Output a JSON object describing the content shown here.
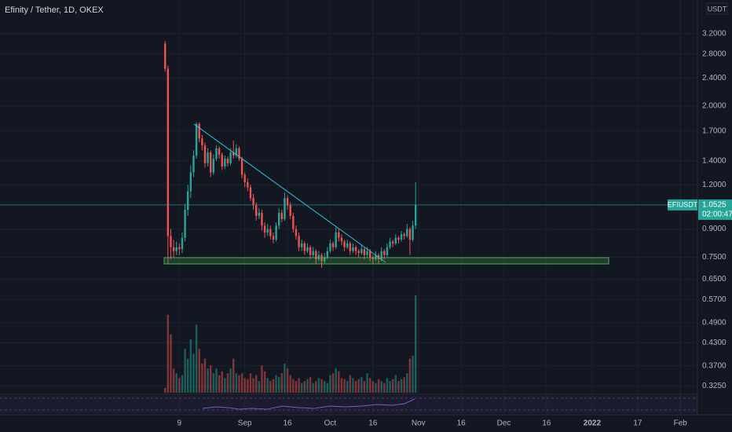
{
  "chart_data": {
    "type": "candlestick",
    "title": "Efinity / Tether, 1D, OKEX",
    "symbol": "EFIUSDT",
    "currency": "USDT",
    "countdown": "02:00:47",
    "up_color": "#26a69a",
    "down_color": "#ef5350",
    "log_scale": true,
    "x": [
      "2021-08-04",
      "2021-08-05",
      "2021-08-06",
      "2021-08-07",
      "2021-08-08",
      "2021-08-09",
      "2021-08-10",
      "2021-08-11",
      "2021-08-12",
      "2021-08-13",
      "2021-08-14",
      "2021-08-15",
      "2021-08-16",
      "2021-08-17",
      "2021-08-18",
      "2021-08-19",
      "2021-08-20",
      "2021-08-21",
      "2021-08-22",
      "2021-08-23",
      "2021-08-24",
      "2021-08-25",
      "2021-08-26",
      "2021-08-27",
      "2021-08-28",
      "2021-08-29",
      "2021-08-30",
      "2021-08-31",
      "2021-09-01",
      "2021-09-02",
      "2021-09-03",
      "2021-09-04",
      "2021-09-05",
      "2021-09-06",
      "2021-09-07",
      "2021-09-08",
      "2021-09-09",
      "2021-09-10",
      "2021-09-11",
      "2021-09-12",
      "2021-09-13",
      "2021-09-14",
      "2021-09-15",
      "2021-09-16",
      "2021-09-17",
      "2021-09-18",
      "2021-09-19",
      "2021-09-20",
      "2021-09-21",
      "2021-09-22",
      "2021-09-23",
      "2021-09-24",
      "2021-09-25",
      "2021-09-26",
      "2021-09-27",
      "2021-09-28",
      "2021-09-29",
      "2021-09-30",
      "2021-10-01",
      "2021-10-02",
      "2021-10-03",
      "2021-10-04",
      "2021-10-05",
      "2021-10-06",
      "2021-10-07",
      "2021-10-08",
      "2021-10-09",
      "2021-10-10",
      "2021-10-11",
      "2021-10-12",
      "2021-10-13",
      "2021-10-14",
      "2021-10-15",
      "2021-10-16",
      "2021-10-17",
      "2021-10-18",
      "2021-10-19",
      "2021-10-20",
      "2021-10-21",
      "2021-10-22",
      "2021-10-23",
      "2021-10-24",
      "2021-10-25",
      "2021-10-26",
      "2021-10-27",
      "2021-10-28",
      "2021-10-29",
      "2021-10-30",
      "2021-10-31"
    ],
    "ohlc": [
      [
        3.0,
        3.05,
        2.5,
        2.55
      ],
      [
        2.55,
        2.6,
        0.72,
        0.86
      ],
      [
        0.86,
        0.9,
        0.74,
        0.8
      ],
      [
        0.8,
        0.84,
        0.75,
        0.78
      ],
      [
        0.78,
        0.83,
        0.76,
        0.8
      ],
      [
        0.8,
        0.82,
        0.76,
        0.79
      ],
      [
        0.79,
        0.88,
        0.77,
        0.85
      ],
      [
        0.85,
        1.06,
        0.83,
        1.02
      ],
      [
        1.02,
        1.2,
        0.98,
        1.15
      ],
      [
        1.15,
        1.36,
        1.1,
        1.3
      ],
      [
        1.3,
        1.5,
        1.26,
        1.45
      ],
      [
        1.45,
        1.8,
        1.42,
        1.78
      ],
      [
        1.78,
        1.8,
        1.58,
        1.62
      ],
      [
        1.62,
        1.66,
        1.5,
        1.55
      ],
      [
        1.55,
        1.58,
        1.34,
        1.38
      ],
      [
        1.38,
        1.52,
        1.35,
        1.48
      ],
      [
        1.48,
        1.5,
        1.26,
        1.3
      ],
      [
        1.3,
        1.46,
        1.28,
        1.42
      ],
      [
        1.42,
        1.55,
        1.4,
        1.52
      ],
      [
        1.52,
        1.54,
        1.42,
        1.46
      ],
      [
        1.46,
        1.48,
        1.32,
        1.35
      ],
      [
        1.35,
        1.45,
        1.33,
        1.42
      ],
      [
        1.42,
        1.44,
        1.35,
        1.38
      ],
      [
        1.38,
        1.52,
        1.36,
        1.48
      ],
      [
        1.48,
        1.6,
        1.42,
        1.45
      ],
      [
        1.45,
        1.56,
        1.43,
        1.52
      ],
      [
        1.52,
        1.54,
        1.4,
        1.42
      ],
      [
        1.42,
        1.44,
        1.25,
        1.28
      ],
      [
        1.28,
        1.3,
        1.18,
        1.22
      ],
      [
        1.22,
        1.25,
        1.15,
        1.18
      ],
      [
        1.18,
        1.2,
        1.08,
        1.1
      ],
      [
        1.1,
        1.13,
        1.02,
        1.05
      ],
      [
        1.05,
        1.07,
        0.95,
        0.98
      ],
      [
        0.98,
        1.03,
        0.96,
        1.0
      ],
      [
        1.0,
        1.02,
        0.89,
        0.92
      ],
      [
        0.92,
        0.94,
        0.85,
        0.88
      ],
      [
        0.88,
        0.93,
        0.86,
        0.9
      ],
      [
        0.9,
        0.92,
        0.84,
        0.86
      ],
      [
        0.86,
        0.88,
        0.82,
        0.84
      ],
      [
        0.84,
        0.94,
        0.83,
        0.92
      ],
      [
        0.92,
        1.03,
        0.9,
        1.0
      ],
      [
        1.0,
        1.02,
        0.94,
        0.96
      ],
      [
        0.96,
        1.14,
        0.95,
        1.1
      ],
      [
        1.1,
        1.12,
        1.02,
        1.05
      ],
      [
        1.05,
        1.07,
        0.96,
        0.98
      ],
      [
        0.98,
        1.0,
        0.88,
        0.9
      ],
      [
        0.9,
        0.92,
        0.84,
        0.86
      ],
      [
        0.86,
        0.88,
        0.78,
        0.8
      ],
      [
        0.8,
        0.84,
        0.78,
        0.82
      ],
      [
        0.82,
        0.83,
        0.76,
        0.78
      ],
      [
        0.78,
        0.82,
        0.77,
        0.8
      ],
      [
        0.8,
        0.81,
        0.74,
        0.76
      ],
      [
        0.76,
        0.8,
        0.75,
        0.78
      ],
      [
        0.78,
        0.79,
        0.72,
        0.74
      ],
      [
        0.74,
        0.78,
        0.73,
        0.76
      ],
      [
        0.76,
        0.77,
        0.7,
        0.73
      ],
      [
        0.73,
        0.77,
        0.72,
        0.75
      ],
      [
        0.75,
        0.8,
        0.74,
        0.78
      ],
      [
        0.78,
        0.84,
        0.77,
        0.82
      ],
      [
        0.82,
        0.83,
        0.78,
        0.8
      ],
      [
        0.8,
        0.91,
        0.79,
        0.88
      ],
      [
        0.88,
        0.9,
        0.83,
        0.85
      ],
      [
        0.85,
        0.87,
        0.81,
        0.83
      ],
      [
        0.83,
        0.84,
        0.78,
        0.8
      ],
      [
        0.8,
        0.84,
        0.79,
        0.82
      ],
      [
        0.82,
        0.83,
        0.76,
        0.78
      ],
      [
        0.78,
        0.82,
        0.77,
        0.8
      ],
      [
        0.8,
        0.81,
        0.76,
        0.78
      ],
      [
        0.78,
        0.79,
        0.75,
        0.77
      ],
      [
        0.77,
        0.81,
        0.76,
        0.79
      ],
      [
        0.79,
        0.8,
        0.74,
        0.76
      ],
      [
        0.76,
        0.8,
        0.75,
        0.78
      ],
      [
        0.78,
        0.79,
        0.73,
        0.75
      ],
      [
        0.75,
        0.76,
        0.72,
        0.74
      ],
      [
        0.74,
        0.78,
        0.73,
        0.76
      ],
      [
        0.76,
        0.77,
        0.72,
        0.74
      ],
      [
        0.74,
        0.8,
        0.73,
        0.78
      ],
      [
        0.78,
        0.79,
        0.74,
        0.76
      ],
      [
        0.76,
        0.82,
        0.75,
        0.8
      ],
      [
        0.8,
        0.85,
        0.79,
        0.83
      ],
      [
        0.83,
        0.84,
        0.8,
        0.82
      ],
      [
        0.82,
        0.87,
        0.81,
        0.85
      ],
      [
        0.85,
        0.86,
        0.82,
        0.84
      ],
      [
        0.84,
        0.89,
        0.83,
        0.87
      ],
      [
        0.87,
        0.88,
        0.84,
        0.86
      ],
      [
        0.86,
        0.93,
        0.85,
        0.9
      ],
      [
        0.9,
        0.91,
        0.76,
        0.84
      ],
      [
        0.84,
        0.95,
        0.83,
        0.92
      ],
      [
        0.92,
        1.22,
        0.9,
        1.0525
      ]
    ],
    "volume": [
      5,
      80,
      60,
      25,
      20,
      15,
      18,
      45,
      35,
      55,
      40,
      70,
      45,
      30,
      35,
      25,
      28,
      20,
      25,
      18,
      22,
      15,
      20,
      25,
      35,
      20,
      18,
      20,
      15,
      14,
      20,
      15,
      18,
      12,
      28,
      22,
      15,
      12,
      14,
      18,
      16,
      20,
      30,
      25,
      18,
      14,
      12,
      15,
      10,
      12,
      14,
      16,
      10,
      12,
      15,
      14,
      12,
      10,
      18,
      20,
      25,
      22,
      15,
      14,
      12,
      18,
      15,
      12,
      14,
      16,
      12,
      20,
      15,
      12,
      10,
      14,
      12,
      10,
      15,
      12,
      14,
      18,
      12,
      14,
      16,
      20,
      35,
      38,
      100
    ],
    "ylim": [
      0.311,
      3.98
    ],
    "yticks": [
      {
        "value": 3.2,
        "label": "3.2000"
      },
      {
        "value": 2.8,
        "label": "2.8000"
      },
      {
        "value": 2.4,
        "label": "2.4000"
      },
      {
        "value": 2.0,
        "label": "2.0000"
      },
      {
        "value": 1.7,
        "label": "1.7000"
      },
      {
        "value": 1.4,
        "label": "1.4000"
      },
      {
        "value": 1.2,
        "label": "1.2000"
      },
      {
        "value": 0.9,
        "label": "0.9000"
      },
      {
        "value": 0.75,
        "label": "0.7500"
      },
      {
        "value": 0.65,
        "label": "0.6500"
      },
      {
        "value": 0.57,
        "label": "0.5700"
      },
      {
        "value": 0.49,
        "label": "0.4900"
      },
      {
        "value": 0.43,
        "label": "0.4300"
      },
      {
        "value": 0.37,
        "label": "0.3700"
      },
      {
        "value": 0.325,
        "label": "0.3250"
      }
    ],
    "xlim": [
      "2021-06-07",
      "2022-02-07"
    ],
    "xticks": [
      {
        "value": "2021-08-09",
        "label": "9"
      },
      {
        "value": "2021-09-01",
        "label": "Sep"
      },
      {
        "value": "2021-09-16",
        "label": "16"
      },
      {
        "value": "2021-10-01",
        "label": "Oct"
      },
      {
        "value": "2021-10-16",
        "label": "16"
      },
      {
        "value": "2021-11-01",
        "label": "Nov"
      },
      {
        "value": "2021-11-16",
        "label": "16"
      },
      {
        "value": "2021-12-01",
        "label": "Dec"
      },
      {
        "value": "2021-12-16",
        "label": "16"
      },
      {
        "value": "2022-01-01",
        "label": "2022"
      },
      {
        "value": "2022-01-17",
        "label": "17"
      },
      {
        "value": "2022-02-01",
        "label": "Feb"
      }
    ]
  }
}
